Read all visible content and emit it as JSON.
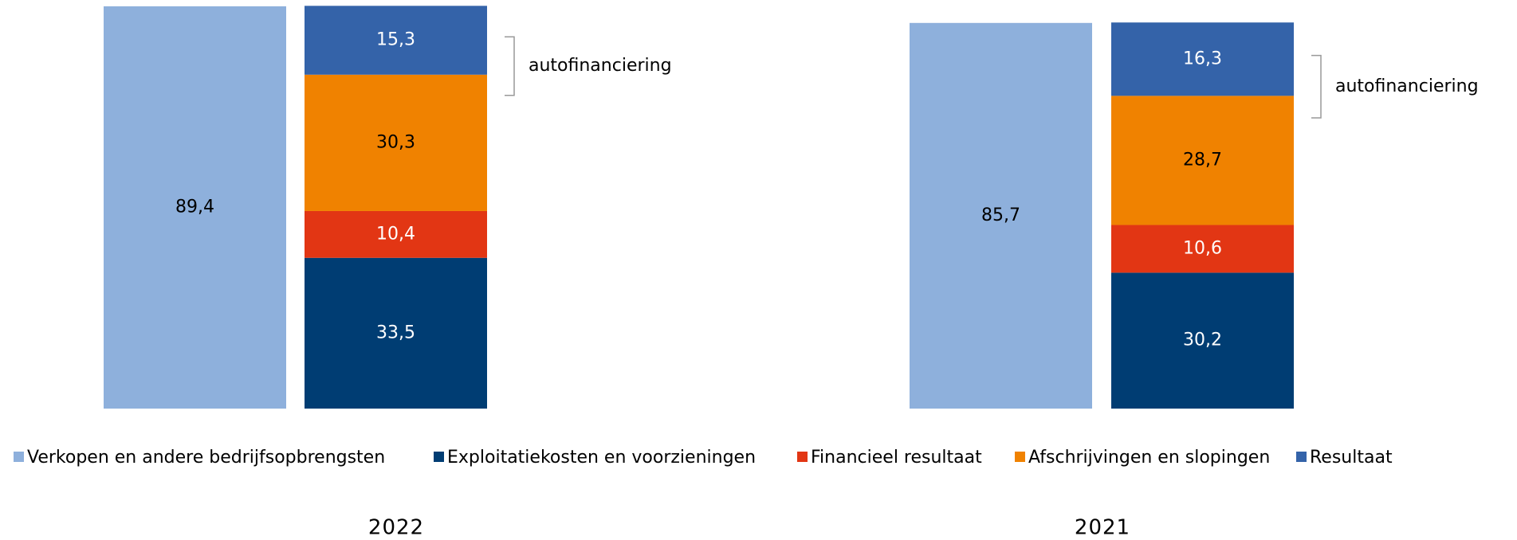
{
  "chart_data": [
    {
      "type": "bar",
      "stacked": true,
      "title": "2022",
      "annotation": "autofinanciering",
      "series": [
        {
          "name": "Verkopen en andere bedrijfsopbrengsten",
          "color": "#8eb0dc",
          "values": [
            89.4,
            null
          ],
          "value_labels": [
            "89,4",
            null
          ]
        },
        {
          "name": "Exploitatiekosten en voorzieningen",
          "color": "#003d73",
          "values": [
            null,
            33.5
          ],
          "value_labels": [
            null,
            "33,5"
          ]
        },
        {
          "name": "Financieel resultaat",
          "color": "#e23614",
          "values": [
            null,
            10.4
          ],
          "value_labels": [
            null,
            "10,4"
          ]
        },
        {
          "name": "Afschrijvingen en slopingen",
          "color": "#f08200",
          "values": [
            null,
            30.3
          ],
          "value_labels": [
            null,
            "30,3"
          ]
        },
        {
          "name": "Resultaat",
          "color": "#3463a9",
          "values": [
            null,
            15.3
          ],
          "value_labels": [
            null,
            "15,3"
          ]
        }
      ]
    },
    {
      "type": "bar",
      "stacked": true,
      "title": "2021",
      "annotation": "autofinanciering",
      "series": [
        {
          "name": "Verkopen en andere bedrijfsopbrengsten",
          "color": "#8eb0dc",
          "values": [
            85.7,
            null
          ],
          "value_labels": [
            "85,7",
            null
          ]
        },
        {
          "name": "Exploitatiekosten en voorzieningen",
          "color": "#003d73",
          "values": [
            null,
            30.2
          ],
          "value_labels": [
            null,
            "30,2"
          ]
        },
        {
          "name": "Financieel resultaat",
          "color": "#e23614",
          "values": [
            null,
            10.6
          ],
          "value_labels": [
            null,
            "10,6"
          ]
        },
        {
          "name": "Afschrijvingen en slopingen",
          "color": "#f08200",
          "values": [
            null,
            28.7
          ],
          "value_labels": [
            null,
            "28,7"
          ]
        },
        {
          "name": "Resultaat",
          "color": "#3463a9",
          "values": [
            null,
            16.3
          ],
          "value_labels": [
            null,
            "16,3"
          ]
        }
      ]
    }
  ]
}
